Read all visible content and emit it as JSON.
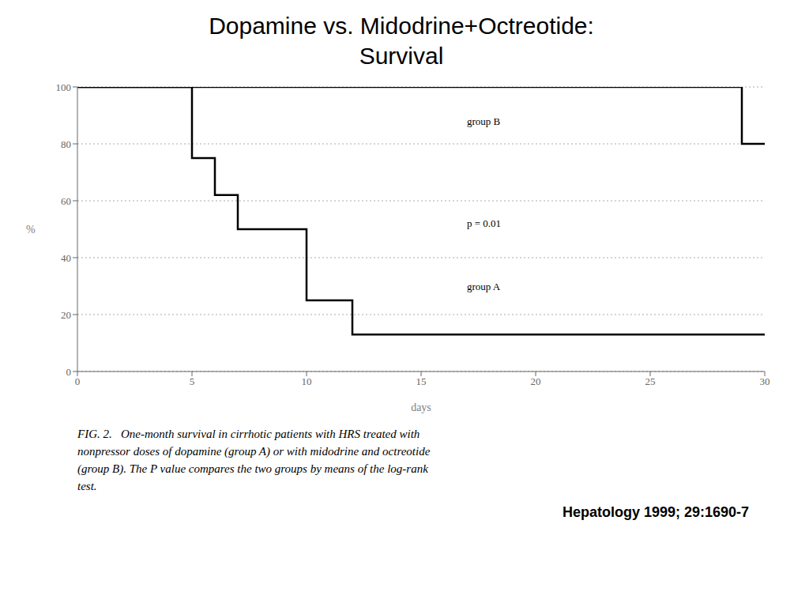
{
  "chart_data": {
    "type": "line",
    "title": "Dopamine vs. Midodrine+Octreotide:",
    "subtitle": "Survival",
    "x_label": "days",
    "y_label": "%",
    "xlim": [
      0,
      30
    ],
    "ylim": [
      0,
      100
    ],
    "xticks": [
      0,
      5,
      10,
      15,
      20,
      25,
      30
    ],
    "yticks": [
      0,
      20,
      40,
      60,
      80,
      100
    ],
    "grid": true,
    "series": [
      {
        "color": "#000000",
        "x": [
          0,
          5,
          5,
          6,
          6,
          7,
          7,
          10,
          10,
          12,
          12,
          30
        ],
        "values": [
          100,
          100,
          75,
          75,
          62,
          62,
          50,
          50,
          25,
          25,
          13,
          13
        ]
      },
      {
        "color": "#000000",
        "x": [
          0,
          29,
          29,
          30
        ],
        "values": [
          100,
          100,
          80,
          80
        ]
      }
    ],
    "annotations": [
      {
        "text": "group A",
        "x": 17,
        "y": 30
      },
      {
        "text": "group B",
        "x": 17,
        "y": 88
      },
      {
        "text": "p = 0.01",
        "x": 17,
        "y": 52
      }
    ],
    "caption": [
      "FIG. 2.   One-month survival in cirrhotic patients with HRS treated with",
      "nonpressor doses of dopamine (group A) or with midodrine and octreotide",
      "(group B). The P value compares the two groups by means of the log-rank",
      "test."
    ],
    "source": "Hepatology 1999; 29:1690-7"
  }
}
